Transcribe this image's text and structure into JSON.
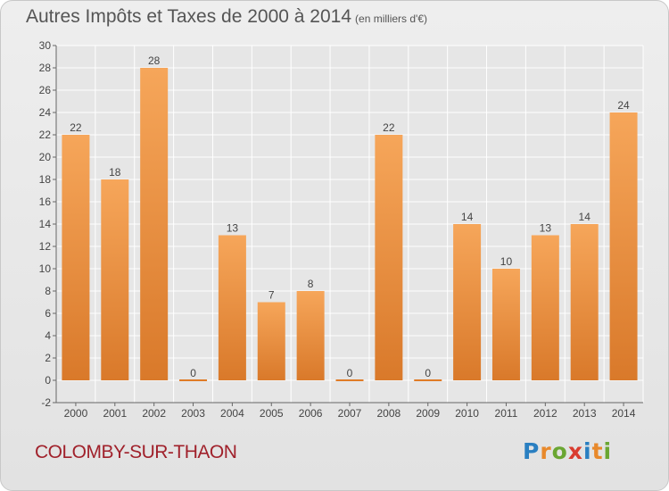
{
  "header": {
    "title": "Autres Impôts et Taxes de 2000 à 2014",
    "unit": "(en milliers d'€)"
  },
  "footer": {
    "city": "COLOMBY-SUR-THAON",
    "logo_letters": [
      {
        "ch": "P",
        "color": "#2a7fc1"
      },
      {
        "ch": "r",
        "color": "#e8892b"
      },
      {
        "ch": "o",
        "color": "#6aa632"
      },
      {
        "ch": "x",
        "color": "#d93c2f"
      },
      {
        "ch": "i",
        "color": "#2a7fc1"
      },
      {
        "ch": "t",
        "color": "#e8892b"
      },
      {
        "ch": "i",
        "color": "#6aa632"
      }
    ]
  },
  "chart_data": {
    "type": "bar",
    "title": "Autres Impôts et Taxes de 2000 à 2014",
    "unit": "(en milliers d'€)",
    "categories": [
      "2000",
      "2001",
      "2002",
      "2003",
      "2004",
      "2005",
      "2006",
      "2007",
      "2008",
      "2009",
      "2010",
      "2011",
      "2012",
      "2013",
      "2014"
    ],
    "values": [
      22,
      18,
      28,
      0,
      13,
      7,
      8,
      0,
      22,
      0,
      14,
      10,
      13,
      14,
      24
    ],
    "ylim": [
      -2,
      30
    ],
    "yticks": [
      -2,
      0,
      2,
      4,
      6,
      8,
      10,
      12,
      14,
      16,
      18,
      20,
      22,
      24,
      26,
      28,
      30
    ],
    "grid": true,
    "legend": "none",
    "colors": {
      "bar_light": "#f6a65a",
      "bar_dark": "#d9792a",
      "zero_bar": "#e07b26",
      "grid": "#ffffff"
    }
  }
}
